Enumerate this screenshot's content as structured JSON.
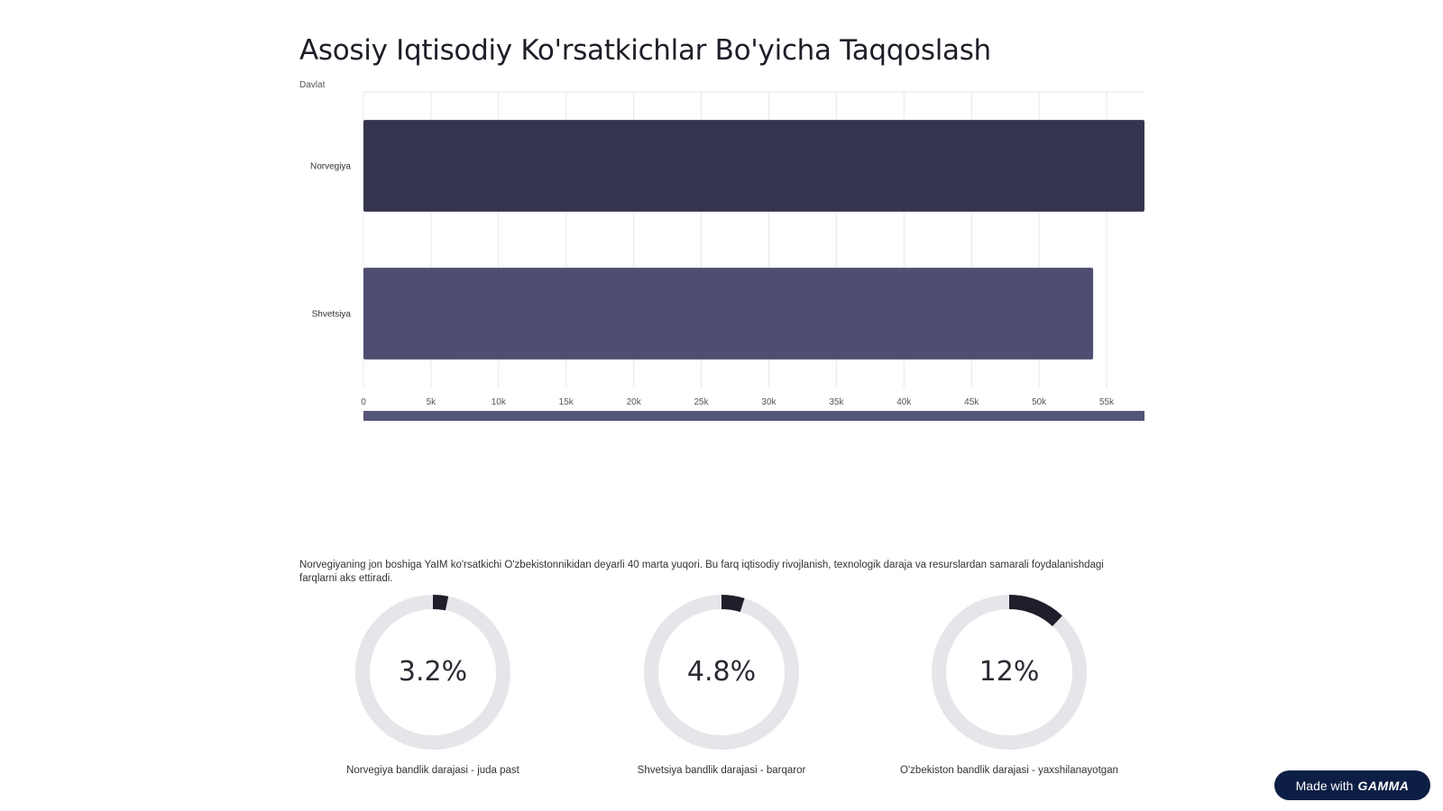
{
  "title": "Asosiy Iqtisodiy Ko'rsatkichlar Bo'yicha Taqqoslash",
  "chart_data": {
    "type": "bar",
    "orientation": "horizontal",
    "title": "Asosiy Iqtisodiy Ko'rsatkichlar Bo'yicha Taqqoslash",
    "ylabel": "Davlat",
    "xlabel": "",
    "categories": [
      "Norvegiya",
      "Shvetsiya"
    ],
    "values": [
      57800,
      54000
    ],
    "xlim": [
      0,
      57800
    ],
    "x_ticks": [
      0,
      5000,
      10000,
      15000,
      20000,
      25000,
      30000,
      35000,
      40000,
      45000,
      50000,
      55000
    ],
    "x_tick_labels": [
      "0",
      "5k",
      "10k",
      "15k",
      "20k",
      "25k",
      "30k",
      "35k",
      "40k",
      "45k",
      "50k",
      "55k"
    ],
    "grid": true,
    "colors": [
      "#35344f",
      "#4f4e72"
    ],
    "scrollbar_color": "#55547a"
  },
  "description": "Norvegiyaning jon boshiga YaIM ko'rsatkichi O'zbekistonnikidan deyarli 40 marta yuqori. Bu farq iqtisodiy rivojlanish, texnologik daraja va resurslardan samarali foydalanishdagi farqlarni aks ettiradi.",
  "donuts": [
    {
      "value": 3.2,
      "label": "3.2%",
      "caption": "Norvegiya bandlik darajasi - juda past"
    },
    {
      "value": 4.8,
      "label": "4.8%",
      "caption": "Shvetsiya bandlik darajasi - barqaror"
    },
    {
      "value": 12,
      "label": "12%",
      "caption": "O'zbekiston bandlik darajasi - yaxshilanayotgan"
    }
  ],
  "donut_colors": {
    "track": "#e6e6ea",
    "fill": "#1f1f2b"
  },
  "badge": {
    "prefix": "Made with",
    "brand": "GAMMA"
  }
}
